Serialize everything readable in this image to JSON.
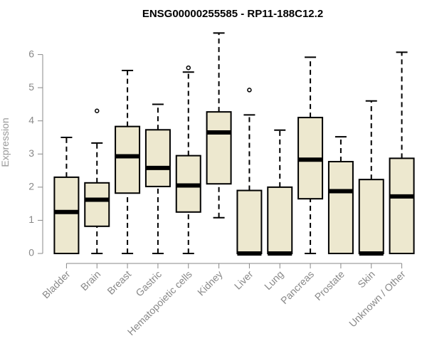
{
  "chart_data": {
    "type": "boxplot",
    "title": "ENSG00000255585 - RP11-188C12.2",
    "ylabel": "Expression",
    "xlabel": "",
    "ylim": [
      0,
      6.7
    ],
    "yticks": [
      0,
      1,
      2,
      3,
      4,
      5,
      6
    ],
    "grid": false,
    "colors": {
      "box_fill": "#ede8cf",
      "box_stroke": "#000000",
      "axis": "#888888"
    },
    "categories": [
      "Bladder",
      "Brain",
      "Breast",
      "Gastric",
      "Hematopoietic cells",
      "Kidney",
      "Liver",
      "Lung",
      "Pancreas",
      "Prostate",
      "Skin",
      "Unknown / Other"
    ],
    "boxes": [
      {
        "min": 0.0,
        "q1": 0.0,
        "median": 1.25,
        "q3": 2.3,
        "max": 3.5,
        "outliers": []
      },
      {
        "min": 0.0,
        "q1": 0.82,
        "median": 1.62,
        "q3": 2.13,
        "max": 3.33,
        "outliers": [
          4.3
        ]
      },
      {
        "min": 0.0,
        "q1": 1.82,
        "median": 2.93,
        "q3": 3.83,
        "max": 5.52,
        "outliers": []
      },
      {
        "min": 0.0,
        "q1": 2.02,
        "median": 2.58,
        "q3": 3.73,
        "max": 4.5,
        "outliers": []
      },
      {
        "min": 0.0,
        "q1": 1.25,
        "median": 2.05,
        "q3": 2.95,
        "max": 5.47,
        "outliers": [
          5.6
        ]
      },
      {
        "min": 1.08,
        "q1": 2.1,
        "median": 3.65,
        "q3": 4.27,
        "max": 6.65,
        "outliers": []
      },
      {
        "min": 0.0,
        "q1": 0.0,
        "median": 0.0,
        "q3": 1.9,
        "max": 4.18,
        "outliers": [
          4.93
        ]
      },
      {
        "min": 0.0,
        "q1": 0.0,
        "median": 0.0,
        "q3": 2.0,
        "max": 3.72,
        "outliers": []
      },
      {
        "min": 0.0,
        "q1": 1.65,
        "median": 2.83,
        "q3": 4.1,
        "max": 5.92,
        "outliers": []
      },
      {
        "min": 0.0,
        "q1": 0.0,
        "median": 1.88,
        "q3": 2.77,
        "max": 3.52,
        "outliers": []
      },
      {
        "min": 0.0,
        "q1": 0.0,
        "median": 0.0,
        "q3": 2.23,
        "max": 4.6,
        "outliers": []
      },
      {
        "min": 0.0,
        "q1": 0.0,
        "median": 1.72,
        "q3": 2.87,
        "max": 6.07,
        "outliers": []
      }
    ]
  }
}
